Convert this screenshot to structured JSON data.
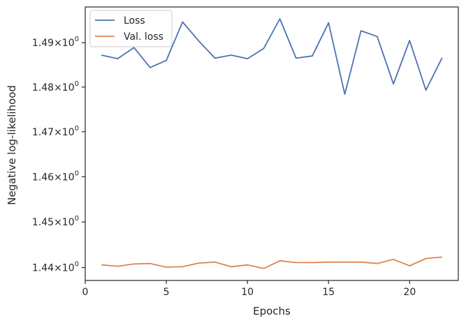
{
  "chart_data": {
    "type": "line",
    "xlabel": "Epochs",
    "ylabel": "Negative log-likelihood",
    "xlim": [
      0,
      23
    ],
    "ylim": [
      1.4372,
      1.4981
    ],
    "yscale": "log",
    "grid": false,
    "legend_position": "top-left",
    "x_ticks": [
      0,
      5,
      10,
      15,
      20
    ],
    "y_ticks": [
      {
        "value": 1.44,
        "mantissa": "1.44",
        "exp": "0"
      },
      {
        "value": 1.45,
        "mantissa": "1.45",
        "exp": "0"
      },
      {
        "value": 1.46,
        "mantissa": "1.46",
        "exp": "0"
      },
      {
        "value": 1.47,
        "mantissa": "1.47",
        "exp": "0"
      },
      {
        "value": 1.48,
        "mantissa": "1.48",
        "exp": "0"
      },
      {
        "value": 1.49,
        "mantissa": "1.49",
        "exp": "0"
      }
    ],
    "x": [
      1,
      2,
      3,
      4,
      5,
      6,
      7,
      8,
      9,
      10,
      11,
      12,
      13,
      14,
      15,
      16,
      17,
      18,
      19,
      20,
      21,
      22
    ],
    "series": [
      {
        "name": "Loss",
        "color": "#4c72b0",
        "values": [
          1.4872,
          1.4864,
          1.4889,
          1.4844,
          1.486,
          1.4947,
          1.4904,
          1.4865,
          1.4872,
          1.4864,
          1.4887,
          1.4954,
          1.4865,
          1.487,
          1.4945,
          1.4784,
          1.4927,
          1.4914,
          1.4807,
          1.4905,
          1.4793,
          1.4866
        ]
      },
      {
        "name": "Val. loss",
        "color": "#dd8452",
        "values": [
          1.4406,
          1.4403,
          1.4408,
          1.4409,
          1.4401,
          1.4402,
          1.441,
          1.4412,
          1.4402,
          1.4406,
          1.4398,
          1.4415,
          1.4411,
          1.4411,
          1.4412,
          1.4412,
          1.4412,
          1.4409,
          1.4418,
          1.4404,
          1.442,
          1.4423
        ]
      }
    ]
  }
}
